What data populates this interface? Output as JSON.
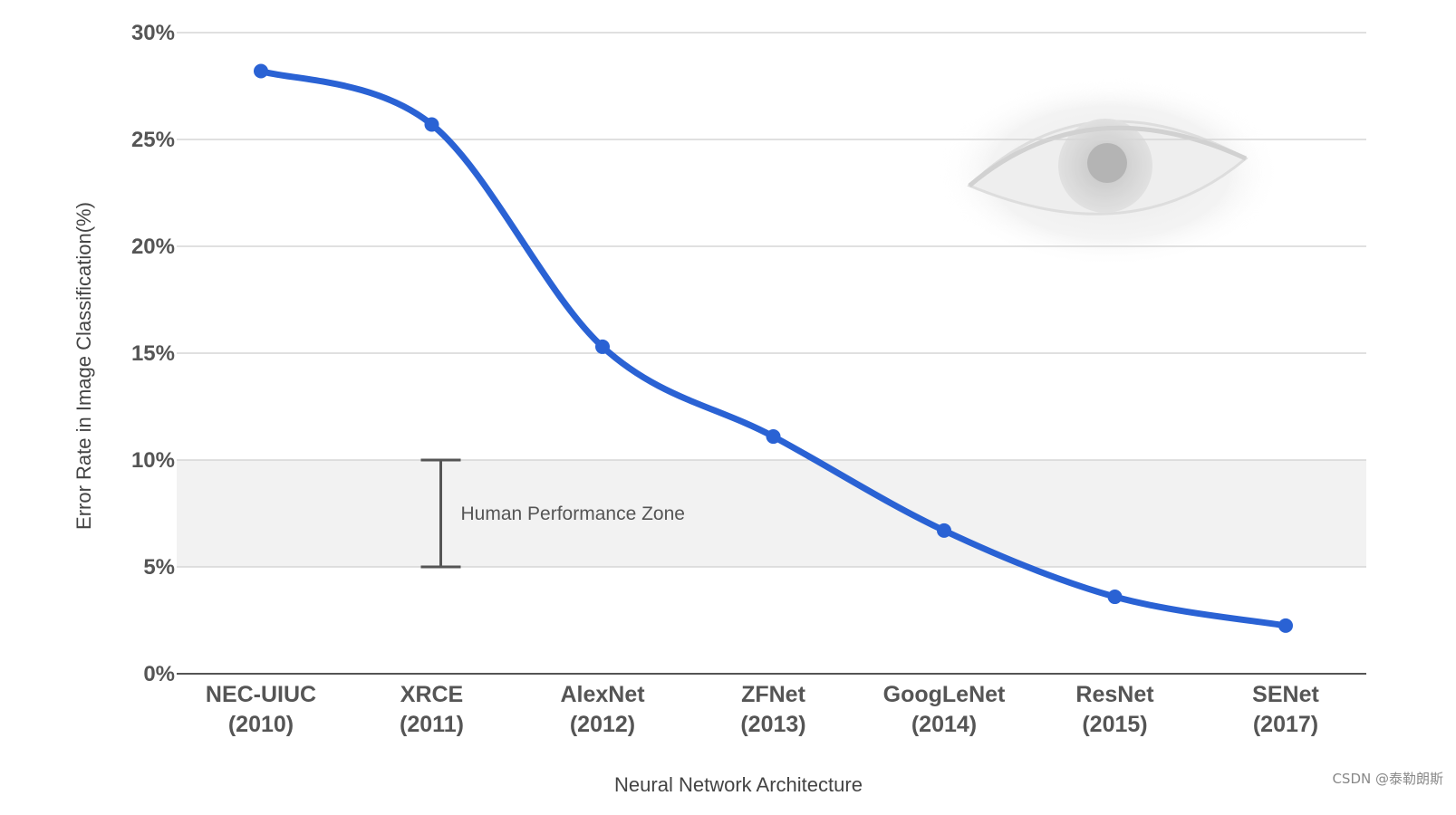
{
  "chart_data": {
    "type": "line",
    "categories": [
      [
        "NEC-UIUC",
        "(2010)"
      ],
      [
        "XRCE",
        "(2011)"
      ],
      [
        "AlexNet",
        "(2012)"
      ],
      [
        "ZFNet",
        "(2013)"
      ],
      [
        "GoogLeNet",
        "(2014)"
      ],
      [
        "ResNet",
        "(2015)"
      ],
      [
        "SENet",
        "(2017)"
      ]
    ],
    "series": [
      {
        "values": [
          28.2,
          25.7,
          15.3,
          11.1,
          6.7,
          3.6,
          2.25
        ]
      }
    ],
    "xlabel": "Neural Network Architecture",
    "ylabel": "Error Rate in Image Classification(%)",
    "ylim": [
      0,
      30
    ],
    "yticks": [
      0,
      5,
      10,
      15,
      20,
      25,
      30
    ],
    "ytick_labels": [
      "0%",
      "5%",
      "10%",
      "15%",
      "20%",
      "25%",
      "30%"
    ],
    "grid": true,
    "band": {
      "from": 5,
      "to": 10,
      "category_index": 1,
      "label": "Human Performance Zone"
    },
    "colors": {
      "line": "#2a62d4",
      "grid": "#d6d6d6",
      "band": "#f2f2f2",
      "axis": "#555555"
    }
  },
  "watermark": "CSDN @泰勒朗斯"
}
